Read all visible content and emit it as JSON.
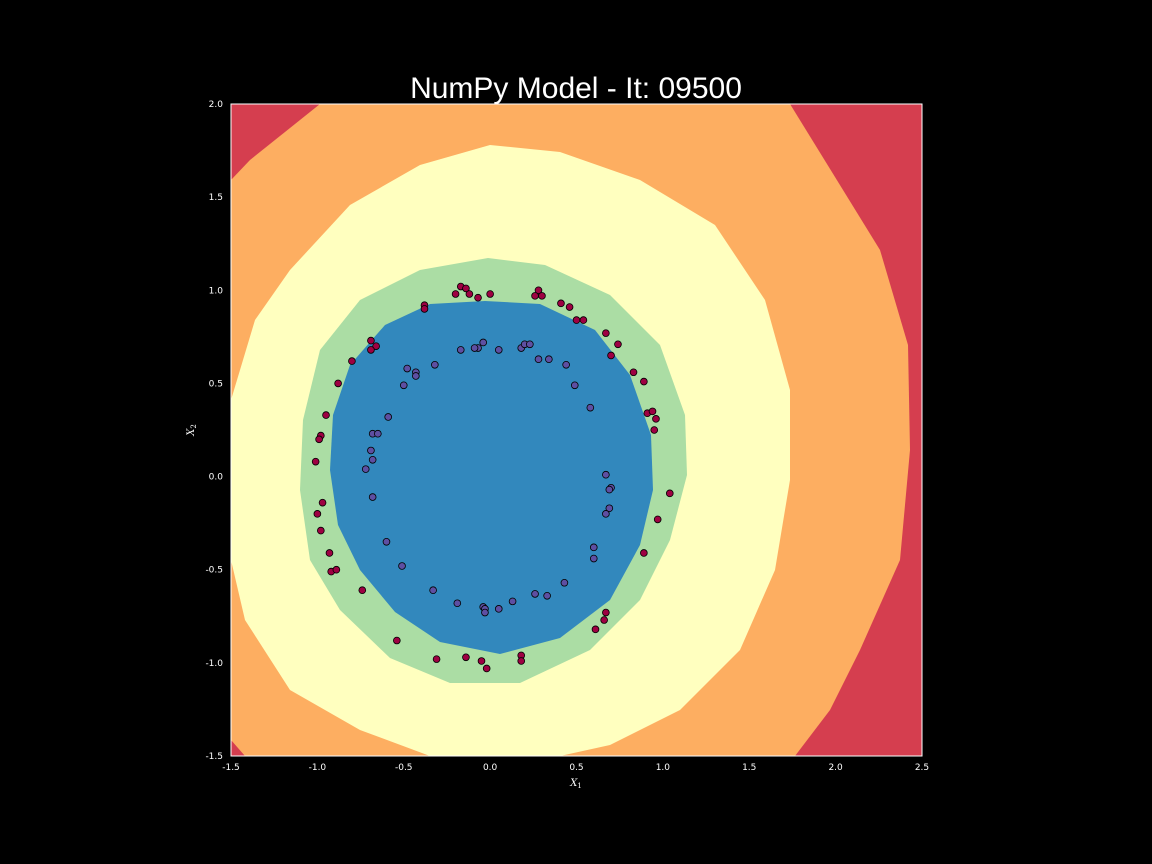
{
  "chart_data": {
    "type": "scatter",
    "title": "NumPy Model - It: 09500",
    "xlabel": "X",
    "xlabel_sub": "1",
    "ylabel": "X",
    "ylabel_sub": "2",
    "xlim": [
      -1.5,
      2.5
    ],
    "ylim": [
      -1.5,
      2.0
    ],
    "xticks": [
      "-1.5",
      "-1.0",
      "-0.5",
      "0.0",
      "0.5",
      "1.0",
      "1.5",
      "2.0",
      "2.5"
    ],
    "yticks": [
      "-1.5",
      "-1.0",
      "-0.5",
      "0.0",
      "0.5",
      "1.0",
      "1.5",
      "2.0"
    ],
    "grid": false,
    "background": "#000000",
    "decision_regions": {
      "description_levels": [
        "outer",
        "mid-outer",
        "mid",
        "inner-ring",
        "core"
      ],
      "colors": [
        "#d53e4f",
        "#fdae61",
        "#ffffbf",
        "#abdda4",
        "#3288bd"
      ]
    },
    "series": [
      {
        "class": 1,
        "color": "#9e0142",
        "points": [
          [
            -0.17,
            1.02
          ],
          [
            -0.14,
            1.01
          ],
          [
            -0.2,
            0.98
          ],
          [
            -0.12,
            0.98
          ],
          [
            -0.07,
            0.96
          ],
          [
            0.0,
            0.98
          ],
          [
            0.28,
            1.0
          ],
          [
            0.26,
            0.97
          ],
          [
            0.3,
            0.97
          ],
          [
            0.41,
            0.93
          ],
          [
            0.46,
            0.91
          ],
          [
            0.5,
            0.84
          ],
          [
            0.54,
            0.84
          ],
          [
            -0.38,
            0.92
          ],
          [
            -0.38,
            0.9
          ],
          [
            -0.69,
            0.73
          ],
          [
            -0.66,
            0.7
          ],
          [
            -0.69,
            0.68
          ],
          [
            -0.8,
            0.62
          ],
          [
            -0.88,
            0.5
          ],
          [
            0.67,
            0.77
          ],
          [
            0.74,
            0.71
          ],
          [
            0.7,
            0.65
          ],
          [
            0.83,
            0.56
          ],
          [
            0.89,
            0.51
          ],
          [
            0.91,
            0.34
          ],
          [
            0.94,
            0.35
          ],
          [
            0.96,
            0.31
          ],
          [
            0.95,
            0.25
          ],
          [
            -0.95,
            0.33
          ],
          [
            -0.98,
            0.22
          ],
          [
            -0.99,
            0.2
          ],
          [
            -1.01,
            0.08
          ],
          [
            1.04,
            -0.09
          ],
          [
            0.97,
            -0.23
          ],
          [
            -0.97,
            -0.14
          ],
          [
            -1.0,
            -0.2
          ],
          [
            -0.98,
            -0.29
          ],
          [
            -0.93,
            -0.41
          ],
          [
            -0.92,
            -0.51
          ],
          [
            -0.89,
            -0.5
          ],
          [
            0.89,
            -0.41
          ],
          [
            -0.74,
            -0.61
          ],
          [
            0.67,
            -0.73
          ],
          [
            0.66,
            -0.77
          ],
          [
            0.61,
            -0.82
          ],
          [
            -0.54,
            -0.88
          ],
          [
            -0.31,
            -0.98
          ],
          [
            -0.14,
            -0.97
          ],
          [
            -0.05,
            -0.99
          ],
          [
            -0.02,
            -1.03
          ],
          [
            0.18,
            -0.96
          ],
          [
            0.18,
            -0.99
          ]
        ]
      },
      {
        "class": 0,
        "color": "#5e4fa2",
        "points": [
          [
            -0.04,
            0.72
          ],
          [
            -0.07,
            0.69
          ],
          [
            -0.09,
            0.69
          ],
          [
            -0.17,
            0.68
          ],
          [
            0.05,
            0.68
          ],
          [
            0.18,
            0.69
          ],
          [
            0.2,
            0.71
          ],
          [
            0.23,
            0.71
          ],
          [
            0.28,
            0.63
          ],
          [
            0.34,
            0.63
          ],
          [
            0.44,
            0.6
          ],
          [
            -0.32,
            0.6
          ],
          [
            -0.48,
            0.58
          ],
          [
            -0.43,
            0.56
          ],
          [
            -0.43,
            0.54
          ],
          [
            -0.5,
            0.49
          ],
          [
            0.49,
            0.49
          ],
          [
            0.58,
            0.37
          ],
          [
            -0.59,
            0.32
          ],
          [
            -0.68,
            0.23
          ],
          [
            -0.65,
            0.23
          ],
          [
            -0.69,
            0.14
          ],
          [
            -0.68,
            0.09
          ],
          [
            -0.72,
            0.04
          ],
          [
            0.67,
            0.01
          ],
          [
            0.7,
            -0.06
          ],
          [
            0.69,
            -0.07
          ],
          [
            -0.68,
            -0.11
          ],
          [
            0.69,
            -0.17
          ],
          [
            0.67,
            -0.2
          ],
          [
            -0.6,
            -0.35
          ],
          [
            0.6,
            -0.38
          ],
          [
            0.6,
            -0.44
          ],
          [
            -0.51,
            -0.48
          ],
          [
            0.43,
            -0.57
          ],
          [
            -0.33,
            -0.61
          ],
          [
            0.26,
            -0.63
          ],
          [
            0.33,
            -0.64
          ],
          [
            -0.19,
            -0.68
          ],
          [
            0.13,
            -0.67
          ],
          [
            -0.04,
            -0.7
          ],
          [
            -0.03,
            -0.71
          ],
          [
            0.05,
            -0.71
          ],
          [
            -0.03,
            -0.73
          ]
        ]
      }
    ]
  }
}
